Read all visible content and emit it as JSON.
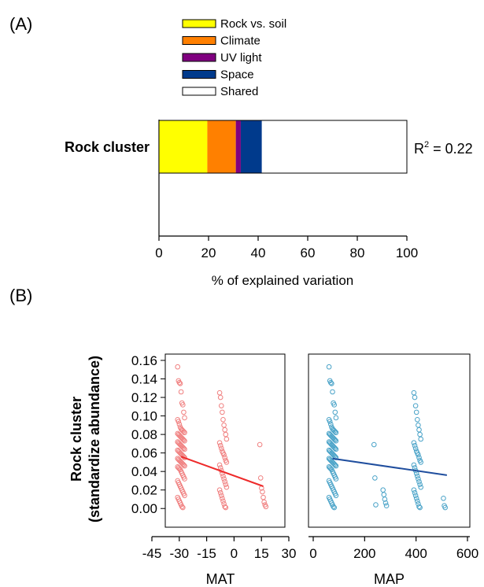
{
  "panel_a": {
    "label": "(A)",
    "r2_prefix": "R",
    "r2_sup": "2",
    "r2_value": " = 0.22"
  },
  "panel_b": {
    "label": "(B)",
    "ylabel_line1": "Rock cluster",
    "ylabel_line2": "(standardize abundance)"
  },
  "chart_data": [
    {
      "type": "bar",
      "orientation": "horizontal",
      "stacked": true,
      "categories": [
        "Rock cluster"
      ],
      "series": [
        {
          "name": "Rock vs. soil",
          "values": [
            19.5
          ],
          "color": "#ffff00"
        },
        {
          "name": "Climate",
          "values": [
            11.5
          ],
          "color": "#ff8000"
        },
        {
          "name": "UV light",
          "values": [
            2
          ],
          "color": "#800080"
        },
        {
          "name": "Space",
          "values": [
            8.5
          ],
          "color": "#003a8c"
        },
        {
          "name": "Shared",
          "values": [
            58.5
          ],
          "color": "#ffffff"
        }
      ],
      "xlabel": "% of explained variation",
      "xlim": [
        0,
        100
      ],
      "xticks": [
        "0",
        "20",
        "40",
        "60",
        "80",
        "100"
      ],
      "legend_position": "top",
      "grid": false
    },
    {
      "type": "scatter",
      "xlabel": "MAT",
      "xlim": [
        -45,
        30
      ],
      "xticks": [
        "-45",
        "-30",
        "-15",
        "0",
        "15",
        "30"
      ],
      "ylim": [
        -0.01,
        0.16
      ],
      "yticks": [
        "0.16",
        "0.14",
        "0.12",
        "0.10",
        "0.08",
        "0.06",
        "0.04",
        "0.02",
        "0.00"
      ],
      "point_color": "#f08080",
      "line_color": "#ee2a2a",
      "trend_line": {
        "x": [
          -29,
          16
        ],
        "y": [
          0.056,
          0.024
        ]
      },
      "groups": [
        {
          "x": -29,
          "y": [
            0.153,
            0.138,
            0.136,
            0.135,
            0.126,
            0.114,
            0.112,
            0.104,
            0.098,
            0.096,
            0.094,
            0.091,
            0.088,
            0.086,
            0.085,
            0.084,
            0.083,
            0.082,
            0.081,
            0.08,
            0.079,
            0.078,
            0.077,
            0.076,
            0.075,
            0.074,
            0.073,
            0.072,
            0.071,
            0.07,
            0.069,
            0.068,
            0.067,
            0.066,
            0.065,
            0.064,
            0.063,
            0.062,
            0.061,
            0.06,
            0.059,
            0.058,
            0.057,
            0.056,
            0.055,
            0.054,
            0.053,
            0.052,
            0.051,
            0.05,
            0.049,
            0.048,
            0.047,
            0.046,
            0.045,
            0.044,
            0.043,
            0.042,
            0.04,
            0.038,
            0.036,
            0.034,
            0.032,
            0.03,
            0.028,
            0.026,
            0.024,
            0.022,
            0.02,
            0.018,
            0.016,
            0.014,
            0.012,
            0.01,
            0.008,
            0.006,
            0.004,
            0.002,
            0.001
          ]
        },
        {
          "x": -6,
          "y": [
            0.125,
            0.12,
            0.111,
            0.104,
            0.096,
            0.09,
            0.085,
            0.08,
            0.075,
            0.071,
            0.068,
            0.065,
            0.062,
            0.06,
            0.058,
            0.055,
            0.052,
            0.05,
            0.047,
            0.044,
            0.041,
            0.038,
            0.035,
            0.032,
            0.029,
            0.026,
            0.023,
            0.02,
            0.017,
            0.014,
            0.011,
            0.008,
            0.005,
            0.002,
            0.001
          ]
        },
        {
          "x": 16,
          "y": [
            0.069,
            0.033,
            0.022,
            0.018,
            0.012,
            0.007,
            0.004,
            0.002
          ]
        }
      ]
    },
    {
      "type": "scatter",
      "xlabel": "MAP",
      "xlim": [
        0,
        600
      ],
      "xticks": [
        "0",
        "200",
        "400",
        "600"
      ],
      "ylim": [
        -0.01,
        0.16
      ],
      "point_color": "#4aa3c8",
      "line_color": "#1f4e9e",
      "trend_line": {
        "x": [
          75,
          520
        ],
        "y": [
          0.054,
          0.036
        ]
      },
      "groups": [
        {
          "x": 75,
          "y": [
            0.153,
            0.138,
            0.136,
            0.135,
            0.126,
            0.114,
            0.112,
            0.104,
            0.098,
            0.096,
            0.094,
            0.091,
            0.088,
            0.086,
            0.085,
            0.084,
            0.083,
            0.082,
            0.081,
            0.08,
            0.079,
            0.078,
            0.077,
            0.076,
            0.075,
            0.074,
            0.073,
            0.072,
            0.071,
            0.07,
            0.069,
            0.068,
            0.067,
            0.066,
            0.065,
            0.064,
            0.063,
            0.062,
            0.061,
            0.06,
            0.059,
            0.058,
            0.057,
            0.056,
            0.055,
            0.054,
            0.053,
            0.052,
            0.051,
            0.05,
            0.049,
            0.048,
            0.047,
            0.046,
            0.045,
            0.044,
            0.043,
            0.042,
            0.04,
            0.038,
            0.036,
            0.034,
            0.032,
            0.03,
            0.028,
            0.026,
            0.024,
            0.022,
            0.02,
            0.018,
            0.016,
            0.014,
            0.012,
            0.01,
            0.008,
            0.006,
            0.004,
            0.002,
            0.001
          ]
        },
        {
          "x": 250,
          "y": [
            0.069,
            0.033,
            0.004
          ]
        },
        {
          "x": 285,
          "y": [
            0.02,
            0.015,
            0.01,
            0.006,
            0.003
          ]
        },
        {
          "x": 405,
          "y": [
            0.125,
            0.12,
            0.111,
            0.104,
            0.096,
            0.09,
            0.085,
            0.08,
            0.075,
            0.071,
            0.068,
            0.065,
            0.062,
            0.06,
            0.058,
            0.055,
            0.052,
            0.05,
            0.047,
            0.044,
            0.041,
            0.038,
            0.035,
            0.032,
            0.029,
            0.026,
            0.023,
            0.02,
            0.017,
            0.014,
            0.011,
            0.008,
            0.005,
            0.002,
            0.001
          ]
        },
        {
          "x": 520,
          "y": [
            0.011,
            0.003,
            0.001
          ]
        }
      ]
    }
  ]
}
